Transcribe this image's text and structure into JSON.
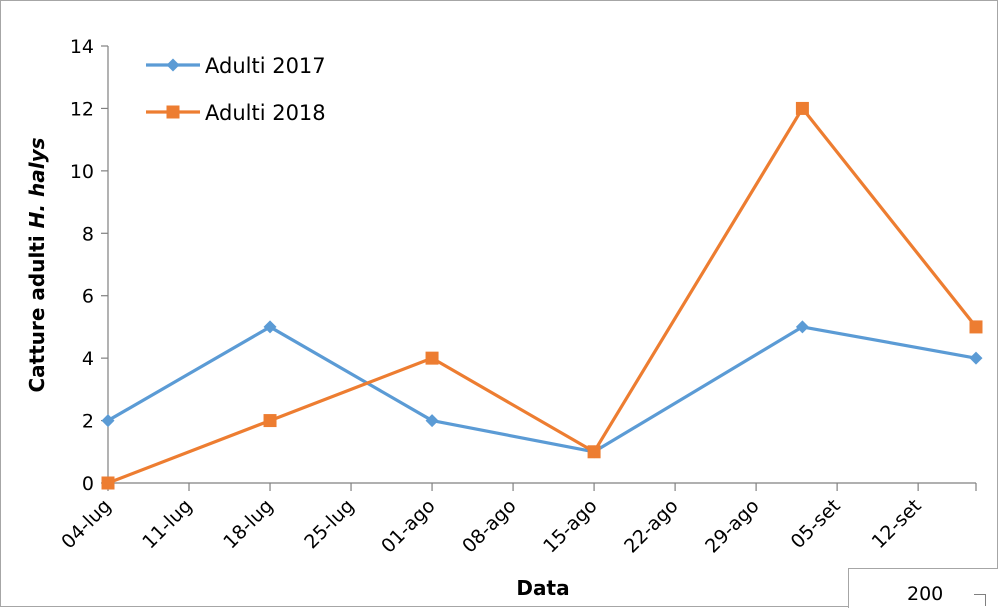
{
  "chart_data": {
    "type": "line",
    "title": "",
    "xlabel": "Data",
    "ylabel_prefix": "Catture adulti ",
    "ylabel_italic": "H. halys",
    "ylim": [
      0,
      14
    ],
    "y_ticks": [
      "0",
      "2",
      "4",
      "6",
      "8",
      "10",
      "12",
      "14"
    ],
    "x_tick_labels": [
      "04-lug",
      "11-lug",
      "18-lug",
      "25-lug",
      "01-ago",
      "08-ago",
      "15-ago",
      "22-ago",
      "29-ago",
      "05-set",
      "12-set"
    ],
    "x_range": [
      "2018-07-04",
      "2018-09-17"
    ],
    "grid": false,
    "legend_position": "top-left",
    "series": [
      {
        "name": "Adulti 2017",
        "color": "#5b9bd5",
        "marker": "diamond",
        "x": [
          "2018-07-04",
          "2018-07-18",
          "2018-08-01",
          "2018-08-15",
          "2018-09-02",
          "2018-09-17"
        ],
        "values": [
          2,
          5,
          2,
          1,
          5,
          4
        ]
      },
      {
        "name": "Adulti 2018",
        "color": "#ed7d31",
        "marker": "square",
        "x": [
          "2018-07-04",
          "2018-07-18",
          "2018-08-01",
          "2018-08-15",
          "2018-09-02",
          "2018-09-17"
        ],
        "values": [
          0,
          2,
          4,
          1,
          12,
          5
        ]
      }
    ]
  },
  "corner_label": "200"
}
